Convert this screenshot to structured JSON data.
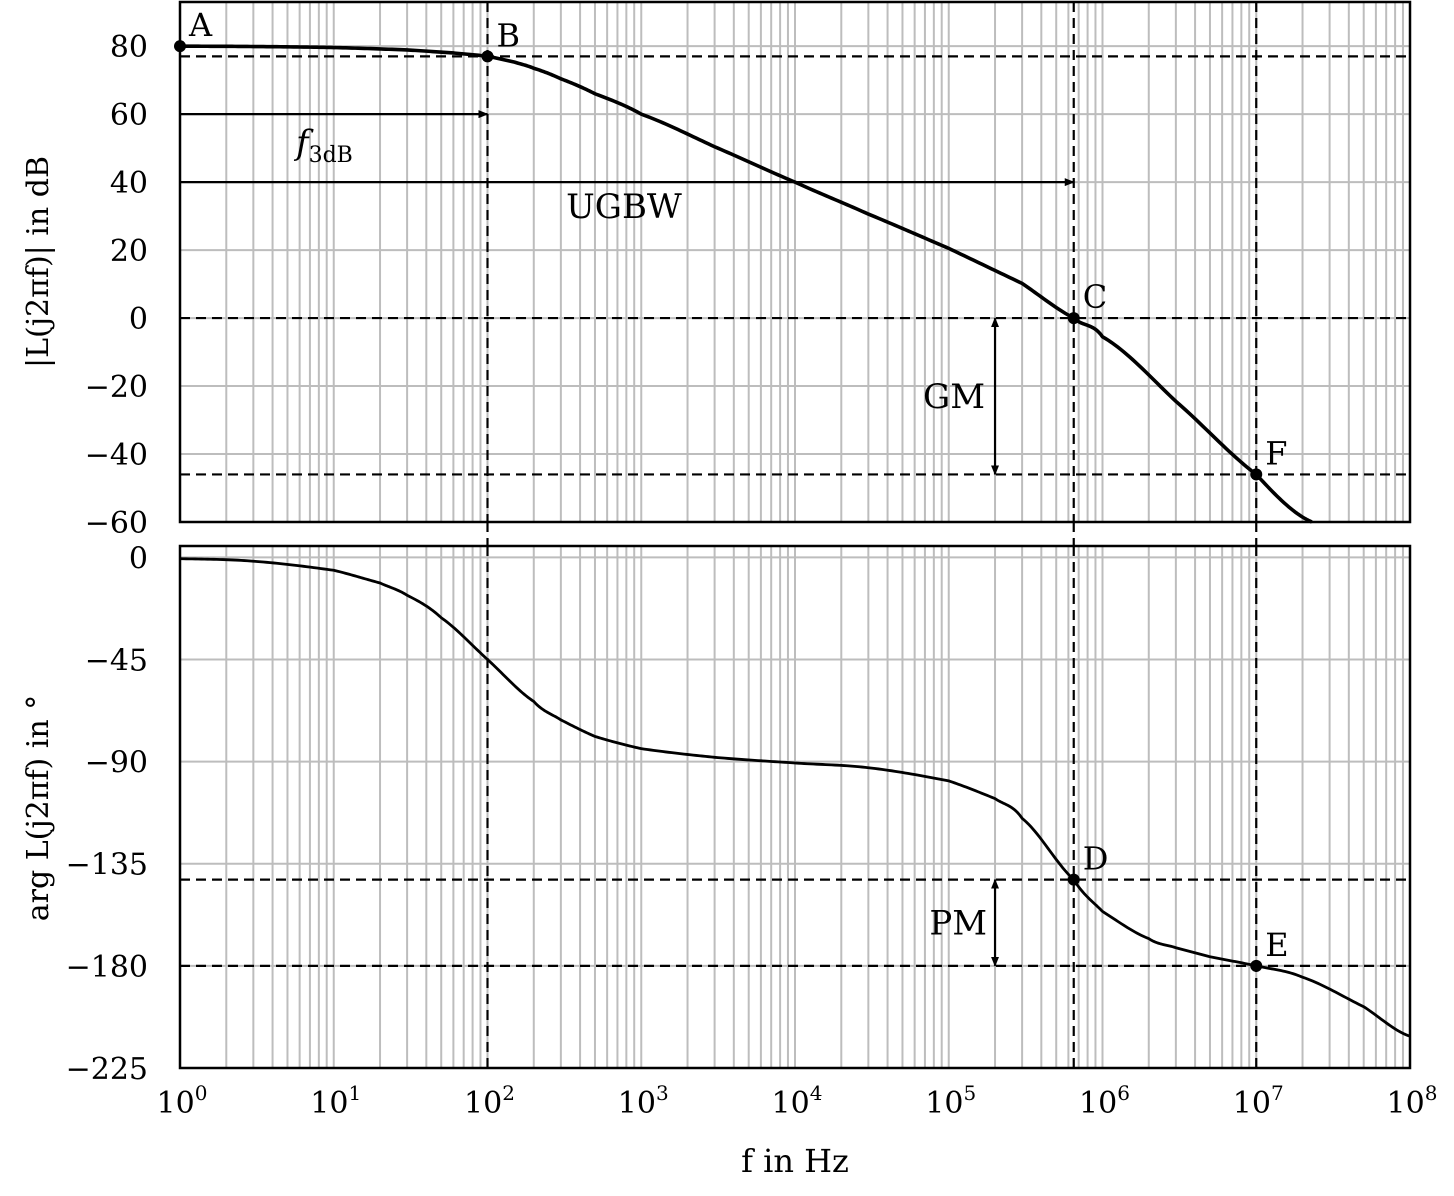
{
  "chart_data": [
    {
      "type": "line",
      "xlabel": "f in Hz",
      "ylabel": "|L(j2πf)| in dB",
      "xscale": "log",
      "xlim": [
        1,
        100000000
      ],
      "ylim": [
        -60,
        93
      ],
      "x_ticks": [
        {
          "base": "10",
          "exp": "0"
        },
        {
          "base": "10",
          "exp": "1"
        },
        {
          "base": "10",
          "exp": "2"
        },
        {
          "base": "10",
          "exp": "3"
        },
        {
          "base": "10",
          "exp": "4"
        },
        {
          "base": "10",
          "exp": "5"
        },
        {
          "base": "10",
          "exp": "6"
        },
        {
          "base": "10",
          "exp": "7"
        },
        {
          "base": "10",
          "exp": "8"
        }
      ],
      "y_ticks": [
        "80",
        "60",
        "40",
        "20",
        "0",
        "−20",
        "−40",
        "−60"
      ],
      "grid": true,
      "series": [
        {
          "x": [
            1,
            3,
            10,
            30,
            60,
            100,
            150,
            200,
            300,
            500,
            1000,
            3000,
            10000,
            30000,
            100000,
            300000,
            650000,
            1000000,
            3000000,
            10000000,
            23000000
          ],
          "y": [
            80,
            79.9,
            79.6,
            78.9,
            78,
            77,
            75.3,
            73.5,
            70.4,
            66,
            60,
            50.4,
            40,
            30.6,
            20.5,
            10.2,
            0,
            -5.5,
            -24.5,
            -46,
            -60
          ]
        }
      ],
      "hlines": [
        77,
        0,
        -46
      ],
      "vlines": [
        100,
        650000,
        10000000
      ],
      "points": [
        {
          "label": "A",
          "x": 1,
          "y": 80
        },
        {
          "label": "B",
          "x": 100,
          "y": 77
        },
        {
          "label": "C",
          "x": 650000,
          "y": 0
        },
        {
          "label": "F",
          "x": 10000000,
          "y": -46
        }
      ],
      "annotations": {
        "f3db": {
          "main": "f",
          "sub": "3dB",
          "y": 60,
          "x_to": 100
        },
        "ugbw": {
          "text": "UGBW",
          "y": 40,
          "x_to": 650000
        },
        "gm": {
          "text": "GM",
          "x": 200000,
          "y_from": 0,
          "y_to": -46
        }
      }
    },
    {
      "type": "line",
      "xlabel": "f in Hz",
      "ylabel": "arg L(j2πf) in °",
      "xscale": "log",
      "xlim": [
        1,
        100000000
      ],
      "ylim": [
        -225,
        5
      ],
      "y_ticks": [
        "0",
        "−45",
        "−90",
        "−135",
        "−180",
        "−225"
      ],
      "grid": true,
      "series": [
        {
          "x": [
            1,
            3,
            10,
            20,
            30,
            50,
            100,
            200,
            300,
            500,
            1000,
            3000,
            10000,
            30000,
            100000,
            200000,
            300000,
            650000,
            1000000,
            2000000,
            3000000,
            5000000,
            10000000,
            20000000,
            50000000,
            100000000
          ],
          "y": [
            -0.6,
            -1.7,
            -5.7,
            -11.3,
            -16.7,
            -26.6,
            -45,
            -63.5,
            -71.6,
            -78.9,
            -84.3,
            -88.1,
            -90.6,
            -92.7,
            -98.5,
            -106.3,
            -115,
            -142,
            -156,
            -168,
            -172,
            -176,
            -180,
            -185,
            -198,
            -211
          ]
        }
      ],
      "hlines": [
        -142,
        -180
      ],
      "vlines": [
        100,
        650000,
        10000000
      ],
      "points": [
        {
          "label": "D",
          "x": 650000,
          "y": -142
        },
        {
          "label": "E",
          "x": 10000000,
          "y": -180
        }
      ],
      "annotations": {
        "pm": {
          "text": "PM",
          "x": 200000,
          "y_from": -142,
          "y_to": -180
        }
      }
    }
  ]
}
